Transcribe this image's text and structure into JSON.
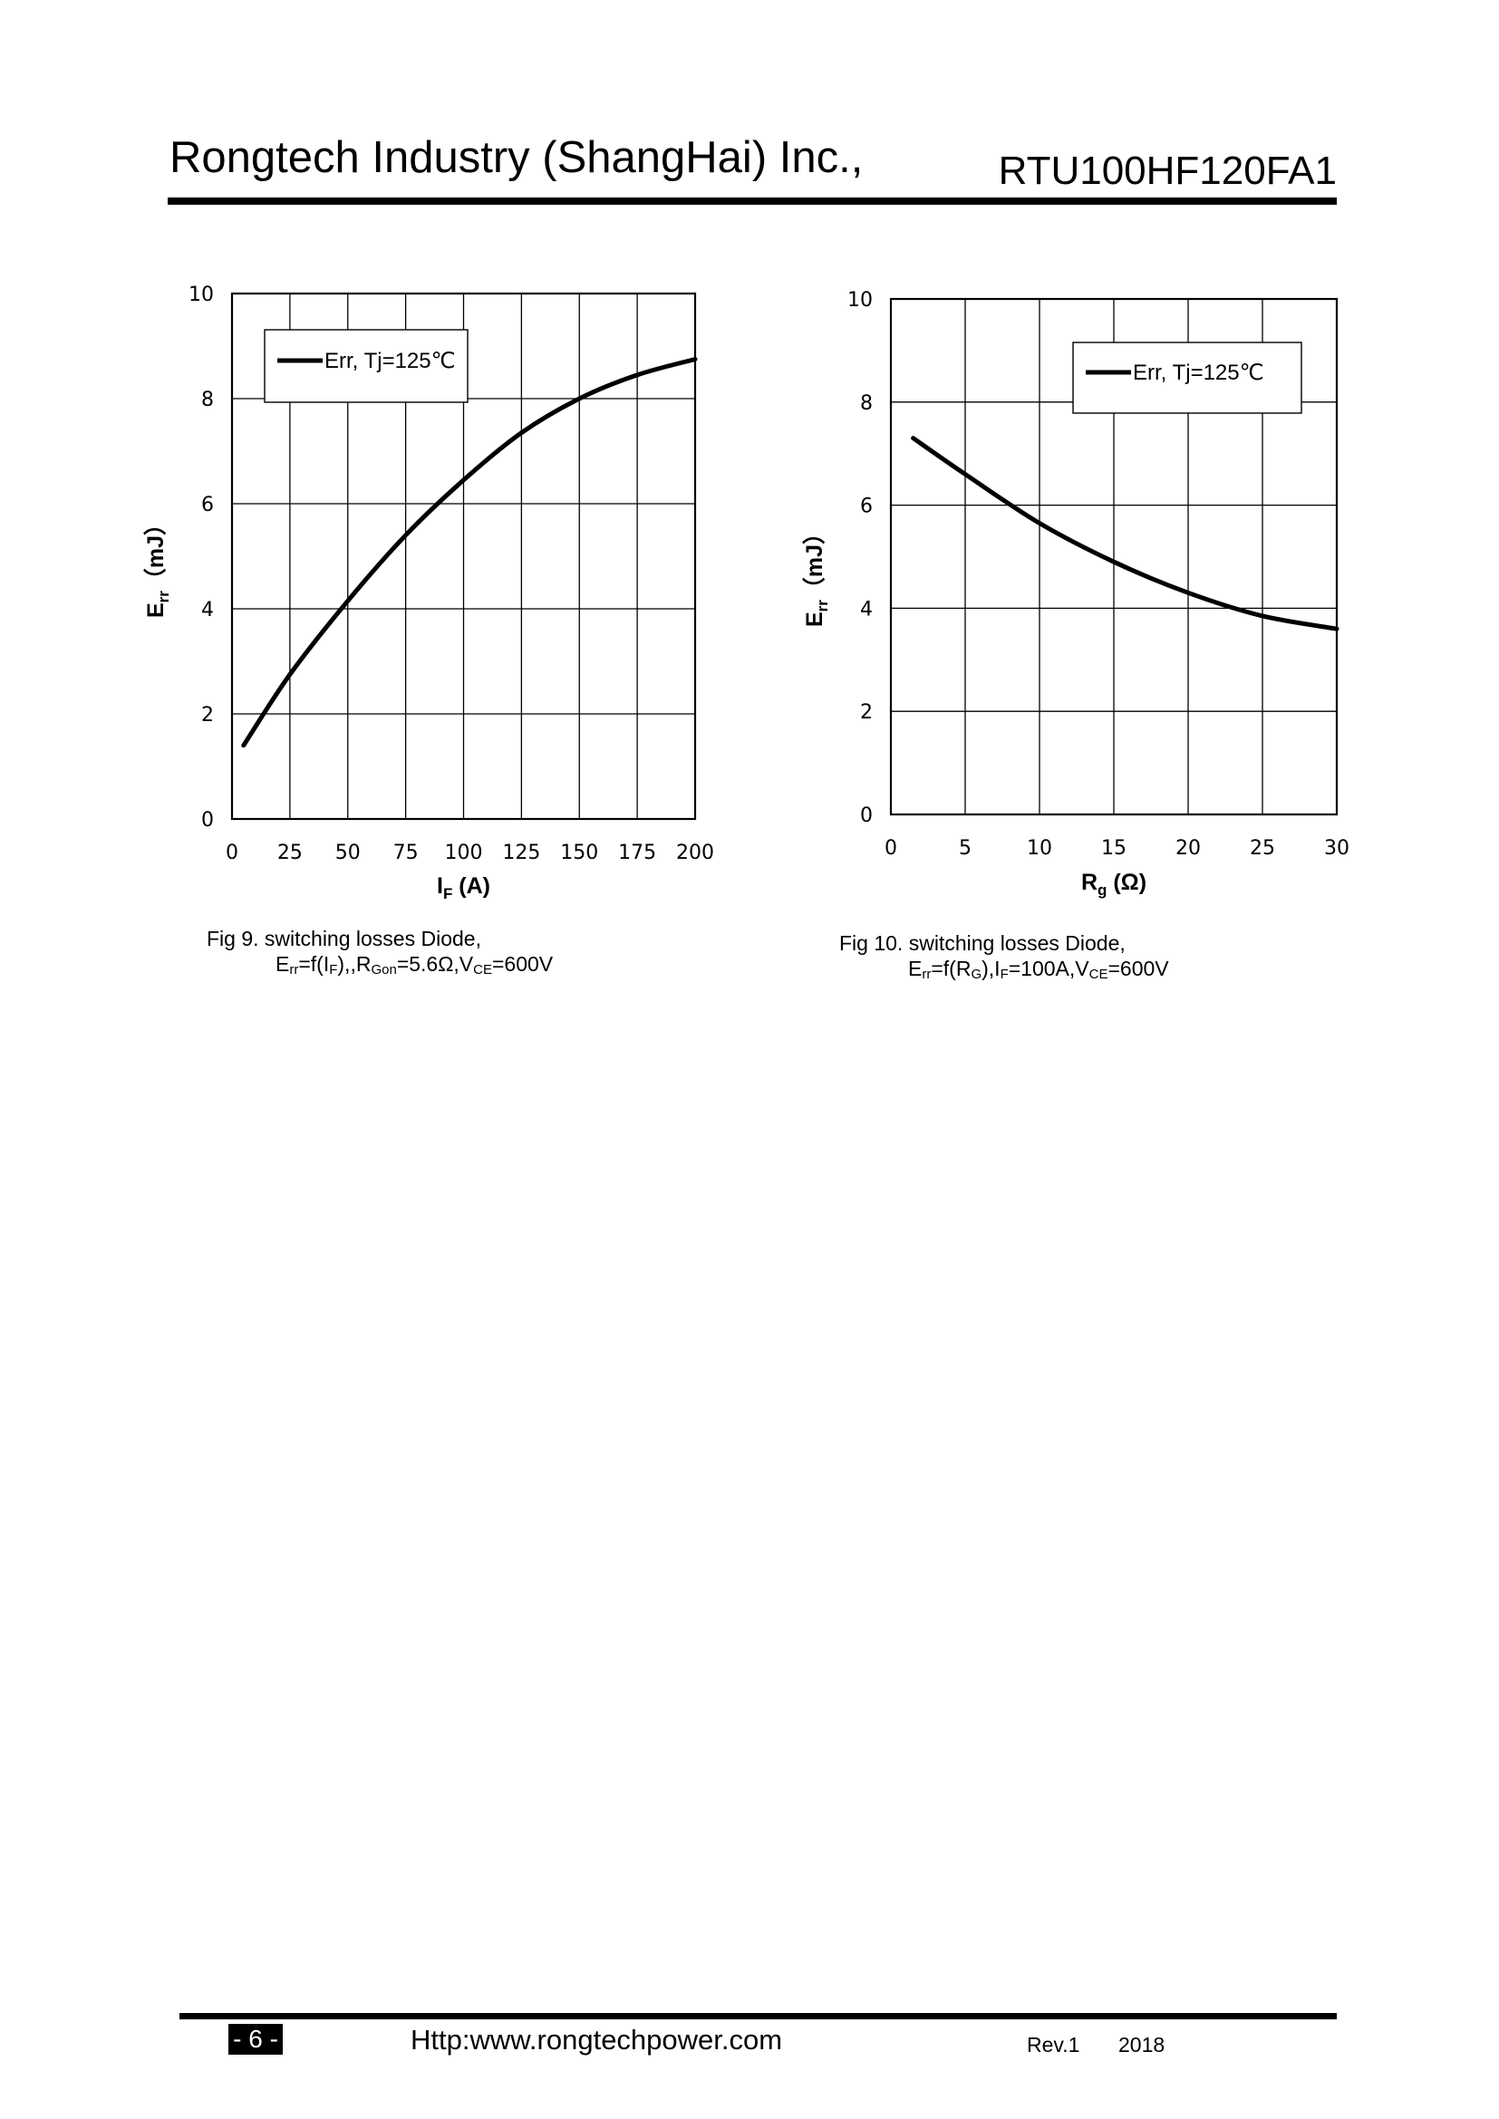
{
  "header": {
    "company": "Rongtech Industry (ShangHai) Inc.,",
    "part_number": "RTU100HF120FA1"
  },
  "figures": [
    {
      "caption_line1": "Fig 9. switching losses Diode,",
      "caption_line2": {
        "e": "E",
        "e_sub": "rr",
        "a": "=f(I",
        "a_sub": "F",
        "b": "),,R",
        "b_sub": "Gon",
        "c": "=5.6Ω,V",
        "c_sub": "CE",
        "d": "=600V"
      }
    },
    {
      "caption_line1": "Fig 10. switching losses Diode,",
      "caption_line2": {
        "e": "E",
        "e_sub": "rr",
        "a": "=f(R",
        "a_sub": "G",
        "b": "),I",
        "b_sub": "F",
        "c": "=100A,V",
        "c_sub": "CE",
        "d": "=600V"
      }
    }
  ],
  "chart_data": [
    {
      "type": "line",
      "x_ticks": [
        "0",
        "25",
        "50",
        "75",
        "100",
        "125",
        "150",
        "175",
        "200"
      ],
      "y_ticks": [
        "0",
        "2",
        "4",
        "6",
        "8",
        "10"
      ],
      "xlim": [
        0,
        200
      ],
      "ylim": [
        0,
        10
      ],
      "xlabel": {
        "main": "I",
        "sub": "F",
        "rest": " (A)"
      },
      "ylabel": {
        "main": "E",
        "sub": "rr",
        "rest": "（mJ）"
      },
      "grid": true,
      "legend_position": "top-left",
      "series": [
        {
          "name": "Err, Tj=125℃",
          "color": "#000000",
          "x": [
            5,
            25,
            50,
            75,
            100,
            125,
            150,
            175,
            200
          ],
          "y": [
            1.4,
            2.75,
            4.15,
            5.4,
            6.45,
            7.35,
            8.0,
            8.45,
            8.75
          ]
        }
      ]
    },
    {
      "type": "line",
      "x_ticks": [
        "0",
        "5",
        "10",
        "15",
        "20",
        "25",
        "30"
      ],
      "y_ticks": [
        "0",
        "2",
        "4",
        "6",
        "8",
        "10"
      ],
      "xlim": [
        0,
        30
      ],
      "ylim": [
        0,
        10
      ],
      "xlabel": {
        "main": "R",
        "sub": "g",
        "rest": " (Ω)"
      },
      "ylabel": {
        "main": "E",
        "sub": "rr",
        "rest": "（mJ）"
      },
      "grid": true,
      "legend_position": "top-right",
      "series": [
        {
          "name": "Err, Tj=125℃",
          "color": "#000000",
          "x": [
            1.5,
            5,
            10,
            15,
            20,
            25,
            30
          ],
          "y": [
            7.3,
            6.6,
            5.65,
            4.9,
            4.3,
            3.85,
            3.6
          ]
        }
      ]
    }
  ],
  "footer": {
    "page": "- 6 -",
    "url": "Http:www.rongtechpower.com",
    "rev": "Rev.1",
    "year": "2018"
  }
}
